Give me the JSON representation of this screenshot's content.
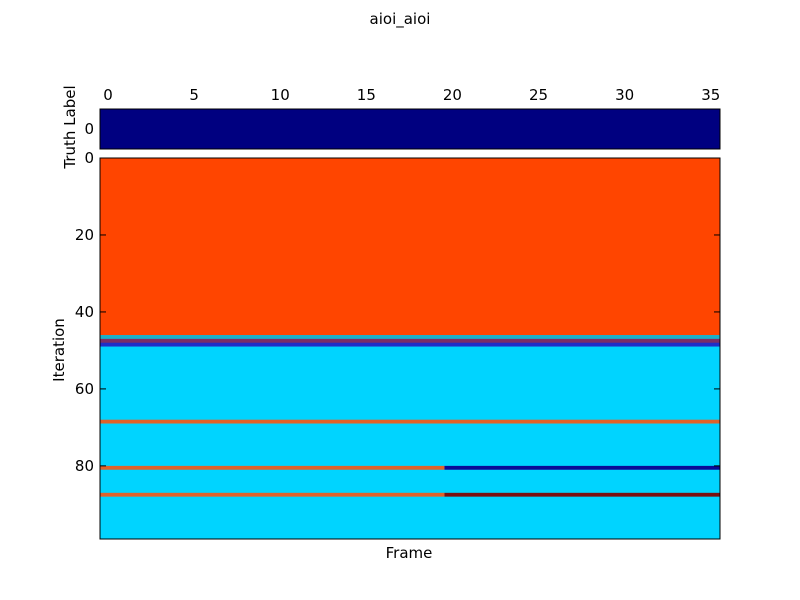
{
  "chart_data": {
    "type": "heatmap",
    "title": "aioi_aioi",
    "x_axis": {
      "label": "Frame",
      "range": [
        0,
        36
      ],
      "ticks": [
        "0",
        "5",
        "10",
        "15",
        "20",
        "25",
        "30",
        "35"
      ],
      "tick_values": [
        0,
        5,
        10,
        15,
        20,
        25,
        30,
        35
      ],
      "position": "top"
    },
    "truth_panel": {
      "ylabel": "Truth Label",
      "yticks": [
        "0"
      ],
      "rows": 1,
      "segments": [
        {
          "row": 0,
          "x_start": 0,
          "x_end": 36,
          "color": "#000080"
        }
      ]
    },
    "main_panel": {
      "ylabel": "Iteration",
      "y_range": [
        0,
        99
      ],
      "yticks": [
        "0",
        "20",
        "40",
        "60",
        "80"
      ],
      "ytick_values": [
        0,
        20,
        40,
        60,
        80
      ],
      "segments": [
        {
          "y_start": 0,
          "y_end": 46,
          "x_start": 0,
          "x_end": 36,
          "color": "#FF4500"
        },
        {
          "y_start": 46,
          "y_end": 47,
          "x_start": 0,
          "x_end": 36,
          "color": "#1AB0C8"
        },
        {
          "y_start": 47,
          "y_end": 48,
          "x_start": 0,
          "x_end": 36,
          "color": "#7A2E66"
        },
        {
          "y_start": 48,
          "y_end": 49,
          "x_start": 0,
          "x_end": 36,
          "color": "#1F2FC8"
        },
        {
          "y_start": 49,
          "y_end": 68,
          "x_start": 0,
          "x_end": 36,
          "color": "#00D4FF"
        },
        {
          "y_start": 68,
          "y_end": 69,
          "x_start": 0,
          "x_end": 36,
          "color": "#E0622A"
        },
        {
          "y_start": 69,
          "y_end": 80,
          "x_start": 0,
          "x_end": 36,
          "color": "#00D4FF"
        },
        {
          "y_start": 80,
          "y_end": 81,
          "x_start": 0,
          "x_end": 20,
          "color": "#E0622A"
        },
        {
          "y_start": 80,
          "y_end": 81,
          "x_start": 20,
          "x_end": 36,
          "color": "#0A0A96"
        },
        {
          "y_start": 81,
          "y_end": 87,
          "x_start": 0,
          "x_end": 36,
          "color": "#00D4FF"
        },
        {
          "y_start": 87,
          "y_end": 88,
          "x_start": 0,
          "x_end": 20,
          "color": "#E0622A"
        },
        {
          "y_start": 87,
          "y_end": 88,
          "x_start": 20,
          "x_end": 36,
          "color": "#7A1010"
        },
        {
          "y_start": 88,
          "y_end": 99,
          "x_start": 0,
          "x_end": 36,
          "color": "#00D4FF"
        }
      ]
    },
    "grid": false
  }
}
